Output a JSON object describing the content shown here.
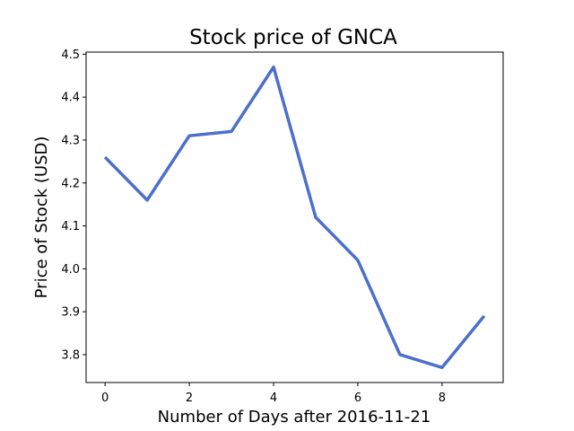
{
  "chart_data": {
    "type": "line",
    "title": "Stock price of GNCA",
    "xlabel": "Number of Days after 2016-11-21",
    "ylabel": "Price of Stock (USD)",
    "x": [
      0,
      1,
      2,
      3,
      4,
      5,
      6,
      7,
      8,
      9
    ],
    "series": [
      {
        "values": [
          4.26,
          4.16,
          4.31,
          4.32,
          4.47,
          4.12,
          4.02,
          3.8,
          3.77,
          3.89
        ],
        "color": "#4c6fcc"
      }
    ],
    "xticks": [
      0,
      2,
      4,
      6,
      8
    ],
    "xtick_labels": [
      "0",
      "2",
      "4",
      "6",
      "8"
    ],
    "yticks": [
      3.8,
      3.9,
      4.0,
      4.1,
      4.2,
      4.3,
      4.4,
      4.5
    ],
    "ytick_labels": [
      "3.8",
      "3.9",
      "4.0",
      "4.1",
      "4.2",
      "4.3",
      "4.4",
      "4.5"
    ],
    "xlim": [
      -0.45,
      9.45
    ],
    "ylim": [
      3.735,
      4.505
    ],
    "grid": false,
    "legend": "none"
  }
}
